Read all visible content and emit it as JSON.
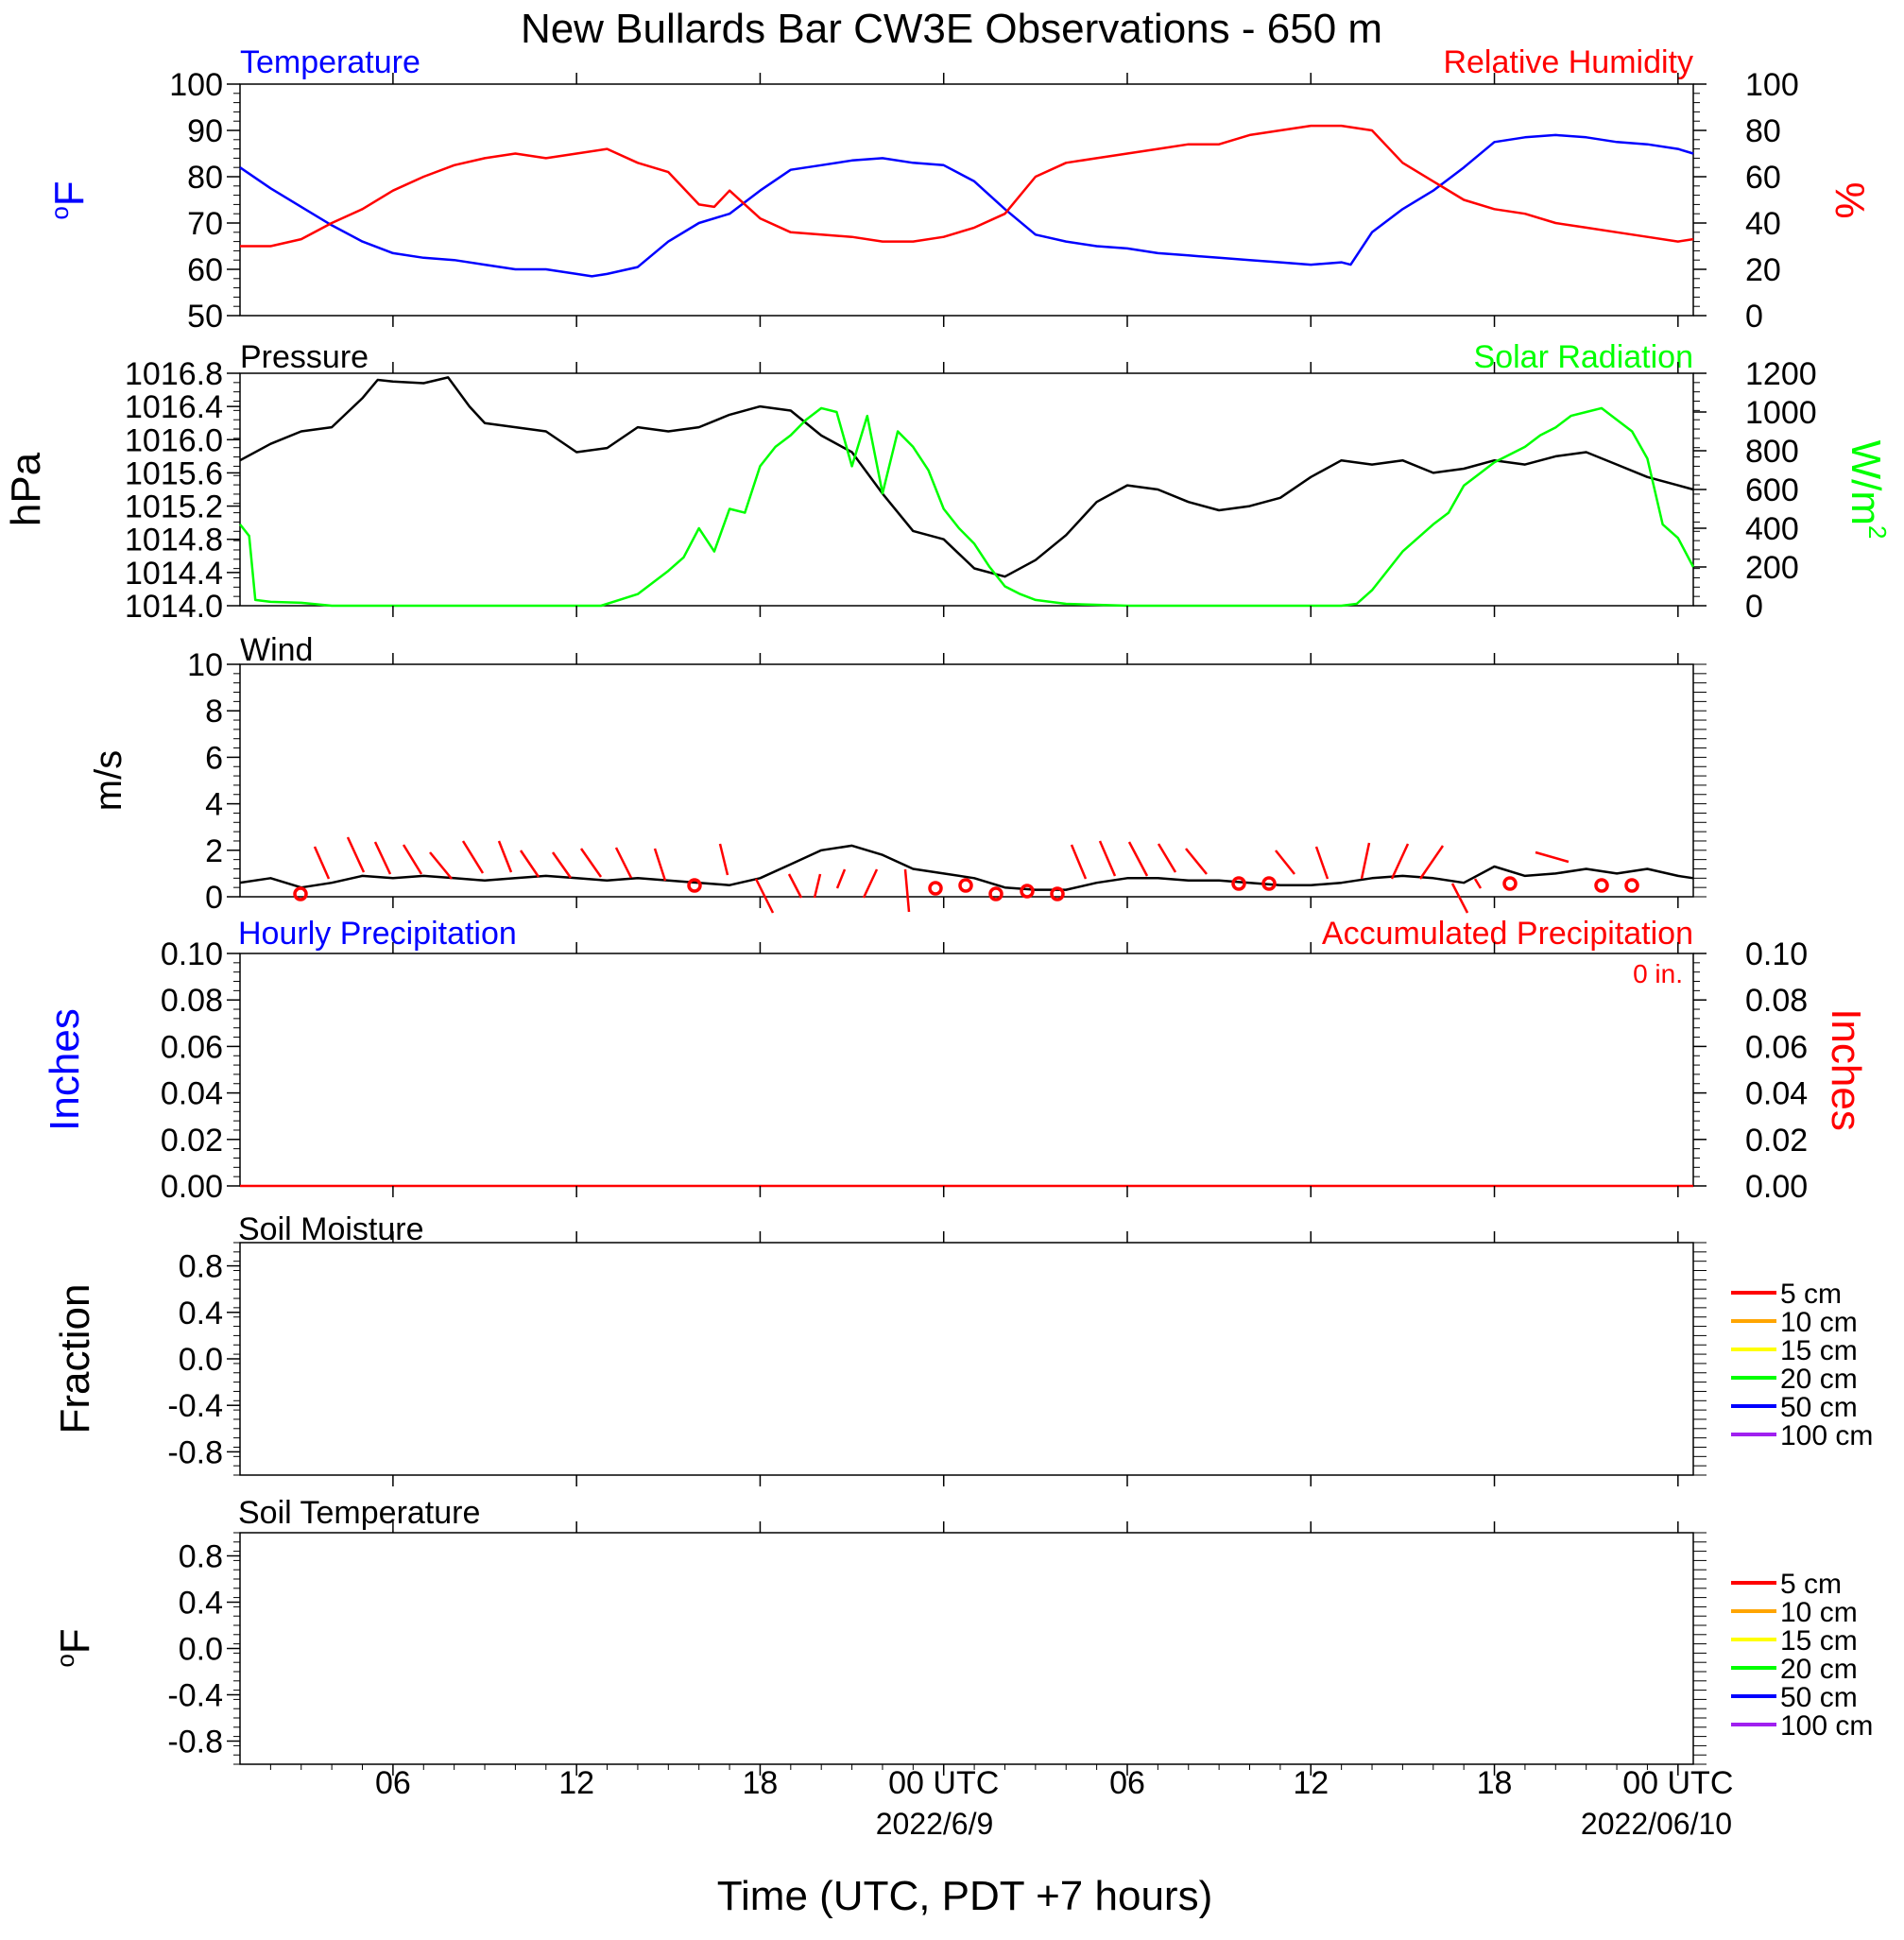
{
  "title": "New Bullards Bar CW3E Observations - 650 m",
  "x_axis": {
    "label": "Time (UTC, PDT +7 hours)",
    "tick_labels": [
      "06",
      "12",
      "18",
      "00 UTC",
      "06",
      "12",
      "18",
      "00 UTC"
    ],
    "date_labels": [
      "2022/6/9",
      "2022/06/10"
    ],
    "range_hours_from_start_of_2022_06_08": [
      1,
      48.5
    ],
    "major_tick_hours": [
      6,
      12,
      18,
      24,
      30,
      36,
      42,
      48
    ]
  },
  "colors": {
    "temperature": "#0000ff",
    "relative_humidity": "#ff0000",
    "pressure": "#000000",
    "solar_radiation": "#00ff00",
    "wind": "#000000",
    "wind_barb": "#ff0000",
    "accumulated_precipitation": "#ff0000",
    "hourly_precipitation": "#0000ff",
    "soil_5cm": "#ff0000",
    "soil_10cm": "#ffa500",
    "soil_15cm": "#ffff00",
    "soil_20cm": "#00ff00",
    "soil_50cm": "#0000ff",
    "soil_100cm": "#a020f0"
  },
  "chart_data": [
    {
      "type": "line",
      "panel": "temperature_humidity",
      "left_title": "Temperature",
      "right_title": "Relative Humidity",
      "left_ylabel_base": "o",
      "left_ylabel_unit": "F",
      "right_ylabel": "%",
      "left_ylim": [
        50,
        100
      ],
      "left_yticks": [
        "100",
        "90",
        "80",
        "70",
        "60",
        "50"
      ],
      "right_ylim": [
        0,
        100
      ],
      "right_yticks": [
        "100",
        "80",
        "60",
        "40",
        "20",
        "0"
      ],
      "series": [
        {
          "key": "temperature",
          "axis": "left",
          "x": [
            1,
            2,
            3,
            4,
            5,
            6,
            7,
            8,
            9,
            10,
            11,
            12,
            12.5,
            13,
            14,
            15,
            16,
            17,
            18,
            19,
            20,
            21,
            22,
            23,
            24,
            25,
            26,
            27,
            28,
            29,
            30,
            31,
            32,
            33,
            34,
            35,
            36,
            37,
            37.3,
            38,
            39,
            40,
            41,
            42,
            43,
            44,
            45,
            46,
            47,
            48,
            48.5
          ],
          "y": [
            82,
            77.5,
            73.5,
            69.5,
            66,
            63.5,
            62.5,
            62,
            61,
            60,
            60,
            59,
            58.5,
            59,
            60.5,
            66,
            70,
            72,
            77,
            81.5,
            82.5,
            83.5,
            84,
            83,
            82.5,
            79,
            73,
            67.5,
            66,
            65,
            64.5,
            63.5,
            63,
            62.5,
            62,
            61.5,
            61,
            61.5,
            61,
            68,
            73,
            77,
            82,
            87.5,
            88.5,
            89,
            88.5,
            87.5,
            87,
            86,
            85
          ]
        },
        {
          "key": "relative_humidity",
          "axis": "right",
          "x": [
            1,
            2,
            3,
            4,
            5,
            6,
            7,
            8,
            9,
            10,
            11,
            12,
            13,
            14,
            15,
            16,
            16.5,
            17,
            18,
            19,
            20,
            21,
            22,
            23,
            24,
            25,
            26,
            27,
            28,
            29,
            30,
            31,
            32,
            33,
            34,
            35,
            36,
            37,
            38,
            39,
            40,
            41,
            42,
            43,
            44,
            45,
            46,
            47,
            48,
            48.5
          ],
          "y": [
            30,
            30,
            33,
            40,
            46,
            54,
            60,
            65,
            68,
            70,
            68,
            70,
            72,
            66,
            62,
            48,
            47,
            54,
            42,
            36,
            35,
            34,
            32,
            32,
            34,
            38,
            44,
            60,
            66,
            68,
            70,
            72,
            74,
            74,
            78,
            80,
            82,
            82,
            80,
            66,
            58,
            50,
            46,
            44,
            40,
            38,
            36,
            34,
            32,
            33
          ]
        }
      ]
    },
    {
      "type": "line",
      "panel": "pressure_solar",
      "left_title": "Pressure",
      "right_title": "Solar Radiation",
      "left_ylabel": "hPa",
      "right_ylabel_base": "W/m",
      "right_ylabel_exp": "2",
      "left_ylim": [
        1014.0,
        1016.8
      ],
      "left_yticks": [
        "1016.8",
        "1016.4",
        "1016.0",
        "1015.6",
        "1015.2",
        "1014.8",
        "1014.4",
        "1014.0"
      ],
      "right_ylim": [
        0,
        1200
      ],
      "right_yticks": [
        "1200",
        "1000",
        "800",
        "600",
        "400",
        "200",
        "0"
      ],
      "series": [
        {
          "key": "pressure",
          "axis": "left",
          "x": [
            1,
            2,
            3,
            4,
            5,
            5.5,
            6,
            7,
            7.8,
            8.5,
            9,
            10,
            11,
            12,
            13,
            14,
            15,
            16,
            17,
            18,
            19,
            20,
            21,
            22,
            23,
            24,
            25,
            26,
            27,
            28,
            29,
            30,
            31,
            32,
            33,
            34,
            35,
            36,
            37,
            38,
            39,
            40,
            41,
            42,
            43,
            44,
            45,
            46,
            47,
            48,
            48.5
          ],
          "y": [
            1015.75,
            1015.95,
            1016.1,
            1016.15,
            1016.5,
            1016.72,
            1016.7,
            1016.68,
            1016.75,
            1016.4,
            1016.2,
            1016.15,
            1016.1,
            1015.85,
            1015.9,
            1016.15,
            1016.1,
            1016.15,
            1016.3,
            1016.4,
            1016.35,
            1016.05,
            1015.85,
            1015.35,
            1014.9,
            1014.8,
            1014.45,
            1014.35,
            1014.55,
            1014.85,
            1015.25,
            1015.45,
            1015.4,
            1015.25,
            1015.15,
            1015.2,
            1015.3,
            1015.55,
            1015.75,
            1015.7,
            1015.75,
            1015.6,
            1015.65,
            1015.75,
            1015.7,
            1015.8,
            1015.85,
            1015.7,
            1015.55,
            1015.45,
            1015.4
          ]
        },
        {
          "key": "solar_radiation",
          "axis": "right",
          "x": [
            1,
            1.3,
            1.5,
            2,
            3,
            4,
            5,
            8,
            11,
            12,
            12.8,
            14,
            15,
            15.5,
            16,
            16.5,
            17,
            17.5,
            18,
            18.5,
            19,
            19.5,
            20,
            20.5,
            21,
            21.5,
            22,
            22.5,
            23,
            23.5,
            24,
            24.5,
            25,
            25.5,
            26,
            26.5,
            27,
            28,
            30,
            34,
            37,
            37.5,
            38,
            39,
            40,
            40.5,
            41,
            42,
            43,
            43.5,
            44,
            44.5,
            45,
            45.5,
            46,
            46.5,
            47,
            47.5,
            48,
            48.5
          ],
          "y": [
            420,
            360,
            30,
            20,
            15,
            0,
            0,
            0,
            0,
            0,
            0,
            60,
            180,
            250,
            400,
            280,
            500,
            480,
            720,
            820,
            880,
            960,
            1020,
            1000,
            720,
            980,
            580,
            900,
            820,
            700,
            500,
            400,
            320,
            200,
            100,
            60,
            30,
            10,
            0,
            0,
            0,
            10,
            80,
            280,
            420,
            480,
            620,
            740,
            820,
            880,
            920,
            980,
            1000,
            1020,
            960,
            900,
            760,
            420,
            350,
            200
          ]
        }
      ]
    },
    {
      "type": "line",
      "panel": "wind",
      "left_title": "Wind",
      "left_ylabel": "m/s",
      "left_ylim": [
        0,
        10
      ],
      "left_yticks": [
        "10",
        "8",
        "6",
        "4",
        "2",
        "0"
      ],
      "series": [
        {
          "key": "wind",
          "axis": "left",
          "x": [
            1,
            2,
            3,
            4,
            5,
            6,
            7,
            8,
            9,
            10,
            11,
            12,
            13,
            14,
            15,
            16,
            17,
            18,
            19,
            20,
            21,
            22,
            23,
            24,
            25,
            26,
            27,
            28,
            29,
            30,
            31,
            32,
            33,
            34,
            35,
            36,
            37,
            38,
            39,
            40,
            41,
            42,
            43,
            44,
            45,
            46,
            47,
            48,
            48.5
          ],
          "y": [
            0.6,
            0.8,
            0.4,
            0.6,
            0.9,
            0.8,
            0.9,
            0.8,
            0.7,
            0.8,
            0.9,
            0.8,
            0.7,
            0.8,
            0.7,
            0.6,
            0.5,
            0.8,
            1.4,
            2.0,
            2.2,
            1.8,
            1.2,
            1.0,
            0.8,
            0.4,
            0.3,
            0.3,
            0.6,
            0.8,
            0.8,
            0.7,
            0.7,
            0.6,
            0.5,
            0.5,
            0.6,
            0.8,
            0.9,
            0.8,
            0.6,
            1.3,
            0.9,
            1.0,
            1.2,
            1.0,
            1.2,
            0.9,
            0.8
          ]
        }
      ]
    },
    {
      "type": "line",
      "panel": "precipitation",
      "left_title": "Hourly Precipitation",
      "right_title": "Accumulated Precipitation",
      "annotation": "0 in.",
      "left_ylabel": "Inches",
      "right_ylabel": "Inches",
      "left_ylim": [
        0,
        0.1
      ],
      "left_yticks": [
        "0.10",
        "0.08",
        "0.06",
        "0.04",
        "0.02",
        "0.00"
      ],
      "right_ylim": [
        0,
        0.1
      ],
      "right_yticks": [
        "0.10",
        "0.08",
        "0.06",
        "0.04",
        "0.02",
        "0.00"
      ],
      "series": [
        {
          "key": "accumulated_precipitation",
          "axis": "right",
          "x": [
            1,
            48.5
          ],
          "y": [
            0,
            0
          ]
        }
      ]
    },
    {
      "type": "line",
      "panel": "soil_moisture",
      "left_title": "Soil Moisture",
      "left_ylabel": "Fraction",
      "left_ylim": [
        -1,
        1
      ],
      "left_yticks": [
        "0.8",
        "0.4",
        "0.0",
        "-0.4",
        "-0.8"
      ],
      "legend": [
        "5 cm",
        "10 cm",
        "15 cm",
        "20 cm",
        "50 cm",
        "100 cm"
      ],
      "legend_position": "right"
    },
    {
      "type": "line",
      "panel": "soil_temperature",
      "left_title": "Soil Temperature",
      "left_ylabel_base": "o",
      "left_ylabel_unit": "F",
      "left_ylim": [
        -1,
        1
      ],
      "left_yticks": [
        "0.8",
        "0.4",
        "0.0",
        "-0.4",
        "-0.8"
      ],
      "legend": [
        "5 cm",
        "10 cm",
        "15 cm",
        "20 cm",
        "50 cm",
        "100 cm"
      ],
      "legend_position": "right"
    }
  ]
}
